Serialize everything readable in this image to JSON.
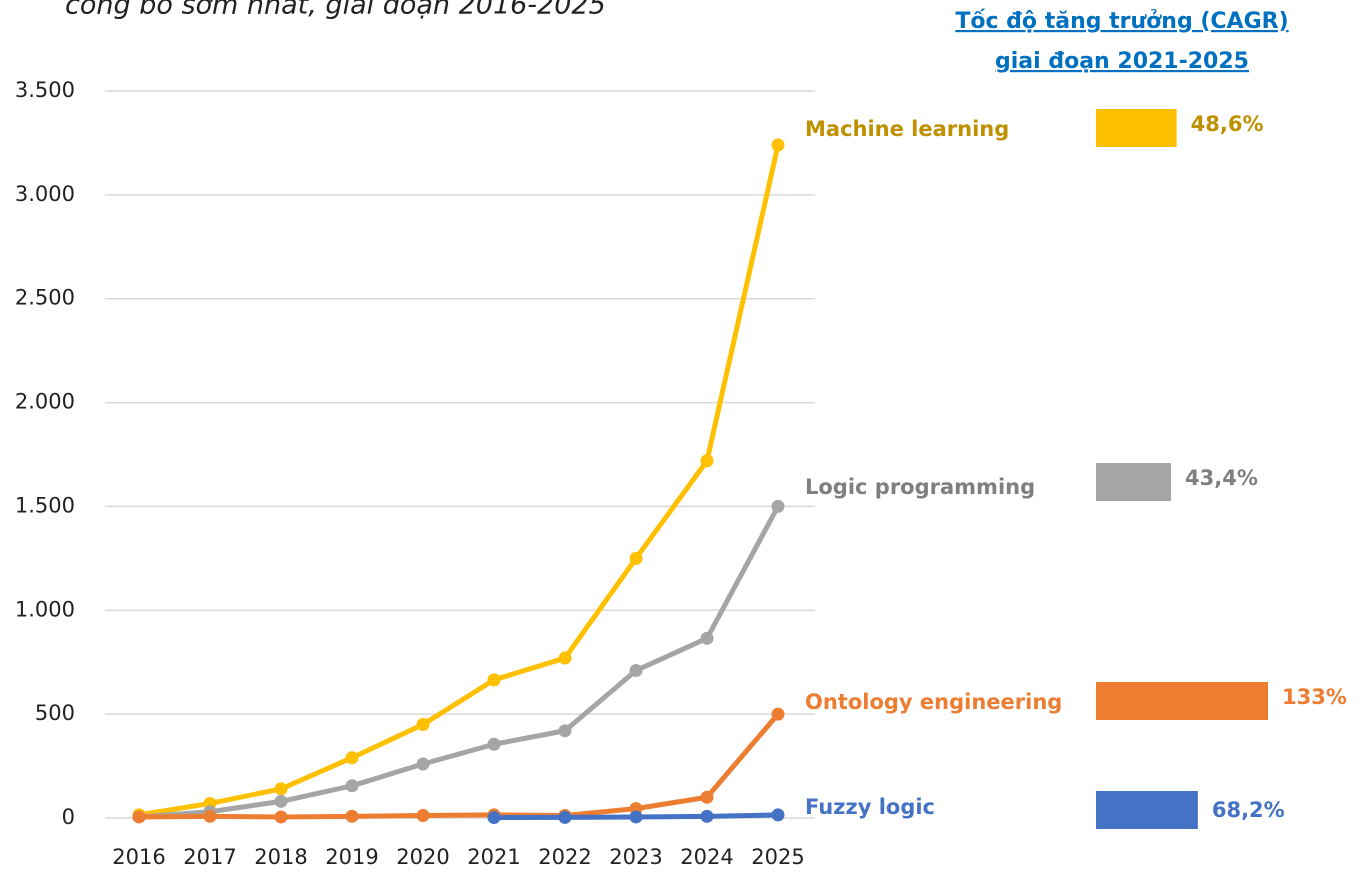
{
  "chart_data": {
    "type": "line",
    "title": "công bố sớm nhất, giai đoạn 2016-2025",
    "side_title": [
      "Tốc độ tăng trưởng (CAGR)",
      "giai đoạn 2021-2025"
    ],
    "categories": [
      "2016",
      "2017",
      "2018",
      "2019",
      "2020",
      "2021",
      "2022",
      "2023",
      "2024",
      "2025"
    ],
    "ylim": [
      0,
      3500
    ],
    "yticks": [
      0,
      500,
      {
        "value": 1000,
        "label": "1.000"
      },
      {
        "value": 1500,
        "label": "1.500"
      },
      {
        "value": 2000,
        "label": "2.000"
      },
      {
        "value": 2500,
        "label": "2.500"
      },
      {
        "value": 3000,
        "label": "3.000"
      },
      {
        "value": 3500,
        "label": "3.500"
      }
    ],
    "grid": true,
    "series": [
      {
        "name": "Machine learning",
        "color": "#ffc000",
        "label_color": "#bf9000",
        "values": [
          15,
          70,
          140,
          290,
          450,
          665,
          770,
          1250,
          1720,
          3240
        ]
      },
      {
        "name": "Logic programming",
        "color": "#a5a5a5",
        "label_color": "#7f7f7f",
        "values": [
          5,
          30,
          80,
          155,
          260,
          355,
          420,
          710,
          865,
          1500
        ]
      },
      {
        "name": "Ontology engineering",
        "color": "#ed7d31",
        "label_color": "#ed7d31",
        "values": [
          5,
          8,
          5,
          8,
          12,
          15,
          12,
          45,
          100,
          500
        ]
      },
      {
        "name": "Fuzzy logic",
        "color": "#4472c4",
        "label_color": "#4472c4",
        "values": [
          null,
          null,
          null,
          null,
          null,
          2,
          3,
          5,
          8,
          15
        ]
      }
    ],
    "cagr": {
      "values": [
        48.6,
        43.4,
        133,
        68.2
      ],
      "value_labels": [
        "48,6%",
        "43,4%",
        "133%",
        "68,2%"
      ]
    }
  }
}
